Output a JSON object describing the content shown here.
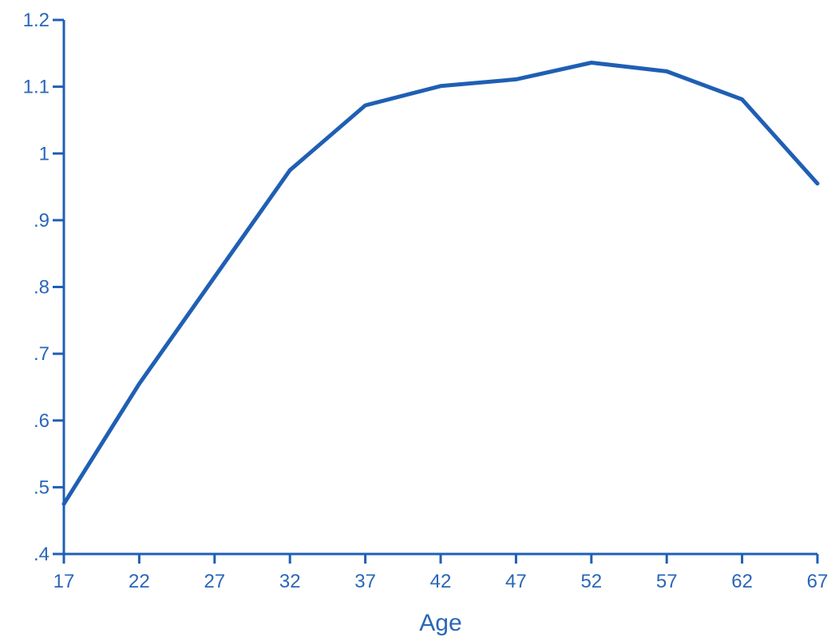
{
  "chart_data": {
    "type": "line",
    "title": "",
    "xlabel": "Age",
    "ylabel": "",
    "xlim": [
      17,
      67
    ],
    "ylim": [
      0.4,
      1.2
    ],
    "x_ticks": [
      17,
      22,
      27,
      32,
      37,
      42,
      47,
      52,
      57,
      62,
      67
    ],
    "x_tick_labels": [
      "17",
      "22",
      "27",
      "32",
      "37",
      "42",
      "47",
      "52",
      "57",
      "62",
      "67"
    ],
    "y_ticks": [
      0.4,
      0.5,
      0.6,
      0.7,
      0.8,
      0.9,
      1.0,
      1.1,
      1.2
    ],
    "y_tick_labels": [
      ".4",
      ".5",
      ".6",
      ".7",
      ".8",
      ".9",
      "1",
      "1.1",
      "1.2"
    ],
    "grid": false,
    "series": [
      {
        "x": [
          17,
          22,
          27,
          32,
          37,
          42,
          47,
          52,
          57,
          62,
          67
        ],
        "y": [
          0.475,
          0.655,
          0.815,
          0.975,
          1.072,
          1.101,
          1.111,
          1.136,
          1.123,
          1.081,
          0.955
        ]
      }
    ]
  },
  "colors": {
    "axis": "#1f5fb4",
    "text": "#2a66b8",
    "series": "#1f5fb4",
    "background": "#ffffff"
  }
}
